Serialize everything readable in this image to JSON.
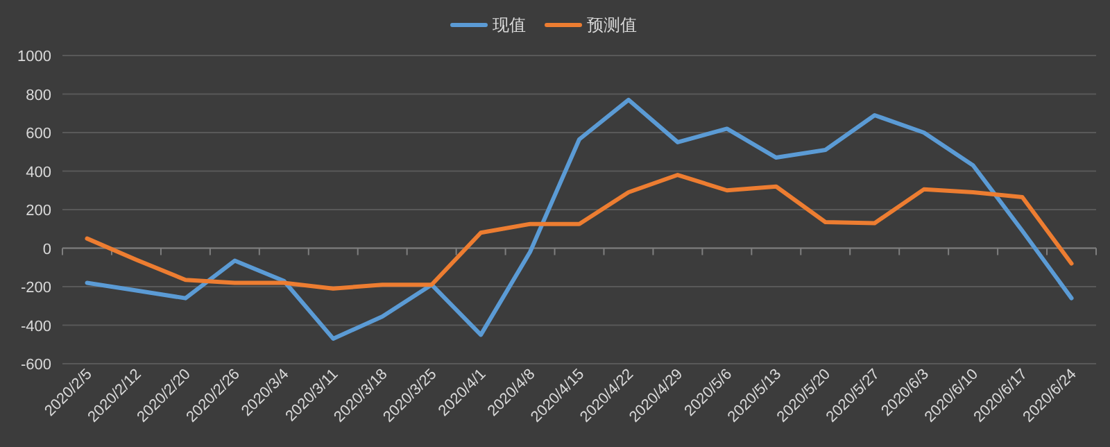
{
  "chart_data": {
    "type": "line",
    "categories": [
      "2020/2/5",
      "2020/2/12",
      "2020/2/20",
      "2020/2/26",
      "2020/3/4",
      "2020/3/11",
      "2020/3/18",
      "2020/3/25",
      "2020/4/1",
      "2020/4/8",
      "2020/4/15",
      "2020/4/22",
      "2020/4/29",
      "2020/5/6",
      "2020/5/13",
      "2020/5/20",
      "2020/5/27",
      "2020/6/3",
      "2020/6/10",
      "2020/6/17",
      "2020/6/24"
    ],
    "series": [
      {
        "name": "现值",
        "color": "#5b9bd5",
        "values": [
          -180,
          -220,
          -260,
          -65,
          -170,
          -470,
          -355,
          -190,
          -450,
          -20,
          565,
          770,
          550,
          620,
          470,
          510,
          690,
          600,
          430,
          90,
          -260
        ]
      },
      {
        "name": "预测值",
        "color": "#ed7d31",
        "values": [
          50,
          -60,
          -165,
          -180,
          -180,
          -210,
          -190,
          -190,
          80,
          125,
          125,
          290,
          380,
          300,
          320,
          135,
          130,
          305,
          290,
          265,
          -80
        ]
      }
    ],
    "ylim": [
      -600,
      1000
    ],
    "yticks": [
      -600,
      -400,
      -200,
      0,
      200,
      400,
      600,
      800,
      1000
    ],
    "grid": "y",
    "legend": "top",
    "marker": "none",
    "line_style": "solid"
  }
}
